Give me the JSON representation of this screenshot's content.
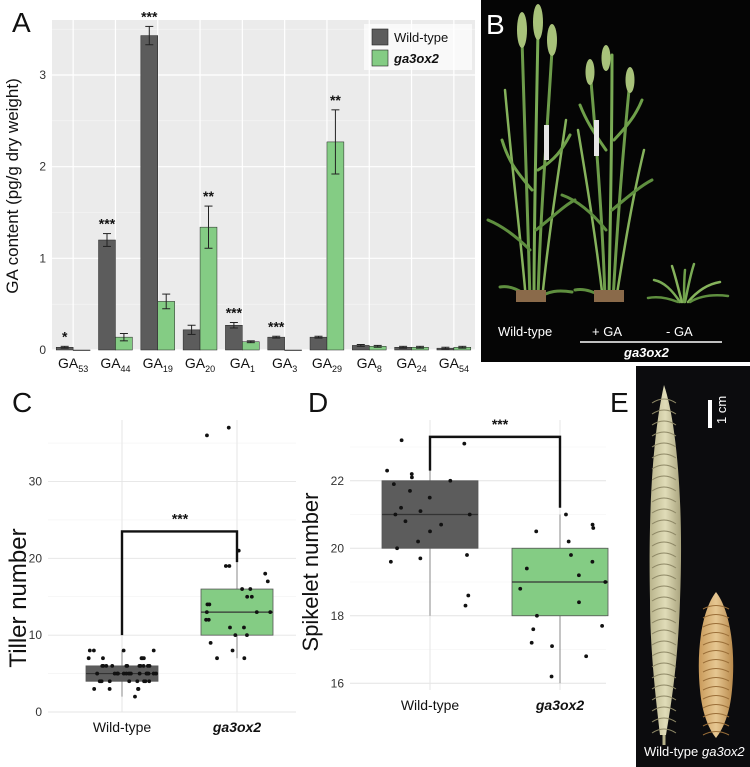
{
  "colors": {
    "wild_type": "#5c5c5c",
    "ga3ox2": "#84cc84",
    "panel_bg": "#ebebeb",
    "photo_bg": "#050505"
  },
  "chart_data": [
    {
      "panel": "A",
      "type": "bar",
      "ylabel": "GA content (pg/g dry weight)",
      "ylim": [
        0,
        3.6
      ],
      "yticks": [
        "0",
        "1",
        "2",
        "3"
      ],
      "categories": [
        {
          "base": "GA",
          "sub": "53"
        },
        {
          "base": "GA",
          "sub": "44"
        },
        {
          "base": "GA",
          "sub": "19"
        },
        {
          "base": "GA",
          "sub": "20"
        },
        {
          "base": "GA",
          "sub": "1"
        },
        {
          "base": "GA",
          "sub": "3"
        },
        {
          "base": "GA",
          "sub": "29"
        },
        {
          "base": "GA",
          "sub": "8"
        },
        {
          "base": "GA",
          "sub": "24"
        },
        {
          "base": "GA",
          "sub": "54"
        }
      ],
      "series": [
        {
          "name": "Wild-type",
          "values": [
            0.03,
            1.2,
            3.43,
            0.22,
            0.27,
            0.14,
            0.14,
            0.05,
            0.03,
            0.02
          ],
          "errors": [
            0.01,
            0.07,
            0.1,
            0.05,
            0.03,
            0.01,
            0.01,
            0.01,
            0.01,
            0.01
          ]
        },
        {
          "name": "ga3ox2",
          "values": [
            0.0,
            0.14,
            0.53,
            1.34,
            0.09,
            0.0,
            2.27,
            0.04,
            0.03,
            0.03
          ],
          "errors": [
            0.0,
            0.04,
            0.08,
            0.23,
            0.01,
            0.0,
            0.35,
            0.01,
            0.01,
            0.01
          ]
        }
      ],
      "significance": [
        "*",
        "***",
        "***",
        "**",
        "***",
        "***",
        "**",
        "",
        "",
        ""
      ],
      "legend_position": "top-right",
      "grid": true
    },
    {
      "panel": "C",
      "type": "box",
      "ylabel": "Tiller number",
      "ylim": [
        0,
        38
      ],
      "yticks": [
        "0",
        "10",
        "20",
        "30"
      ],
      "categories": [
        "Wild-type",
        "ga3ox2"
      ],
      "boxes": [
        {
          "q1": 4,
          "median": 5,
          "q3": 6,
          "whisker_low": 2,
          "whisker_high": 8
        },
        {
          "q1": 10,
          "median": 13,
          "q3": 16,
          "whisker_low": 7,
          "whisker_high": 21
        }
      ],
      "points": [
        [
          2,
          3,
          3,
          3,
          4,
          4,
          4,
          4,
          4,
          4,
          4,
          5,
          5,
          5,
          5,
          5,
          5,
          5,
          5,
          5,
          5,
          5,
          5,
          6,
          6,
          6,
          6,
          6,
          6,
          6,
          6,
          6,
          7,
          7,
          7,
          7,
          8,
          8,
          8,
          8,
          5,
          4,
          3,
          6,
          7,
          5,
          4,
          6
        ],
        [
          7,
          7,
          8,
          9,
          10,
          10,
          11,
          11,
          12,
          12,
          13,
          13,
          13,
          14,
          14,
          15,
          15,
          16,
          16,
          17,
          18,
          19,
          19,
          21,
          36,
          37
        ]
      ],
      "significance": "***",
      "grid": true
    },
    {
      "panel": "D",
      "type": "box",
      "ylabel": "Spikelet number",
      "ylim": [
        15.8,
        23.8
      ],
      "yticks": [
        "16",
        "18",
        "20",
        "22"
      ],
      "categories": [
        "Wild-type",
        "ga3ox2"
      ],
      "boxes": [
        {
          "q1": 20,
          "median": 21,
          "q3": 22,
          "whisker_low": 18,
          "whisker_high": 23.2
        },
        {
          "q1": 18,
          "median": 19,
          "q3": 20,
          "whisker_low": 16,
          "whisker_high": 21
        }
      ],
      "points": [
        [
          18.3,
          18.6,
          19.6,
          19.7,
          19.8,
          20,
          20.2,
          20.5,
          20.7,
          20.8,
          21,
          21,
          21.1,
          21.2,
          21.5,
          21.7,
          21.9,
          22,
          22.1,
          22.2,
          22.3,
          23.1,
          23.2
        ],
        [
          16.2,
          16.8,
          17.1,
          17.2,
          17.6,
          17.7,
          18,
          18.4,
          18.8,
          19,
          19.2,
          19.4,
          19.6,
          19.8,
          20.2,
          20.5,
          20.6,
          20.7,
          21
        ]
      ],
      "significance": "***",
      "grid": true
    }
  ],
  "photos": {
    "B": {
      "letter": "B",
      "labels": [
        "Wild-type",
        "+ GA",
        "- GA"
      ],
      "group_label": "ga3ox2"
    },
    "E": {
      "letter": "E",
      "scale": "1 cm",
      "labels": [
        "Wild-type",
        "ga3ox2"
      ]
    }
  },
  "letters": {
    "A": "A",
    "C": "C",
    "D": "D"
  }
}
